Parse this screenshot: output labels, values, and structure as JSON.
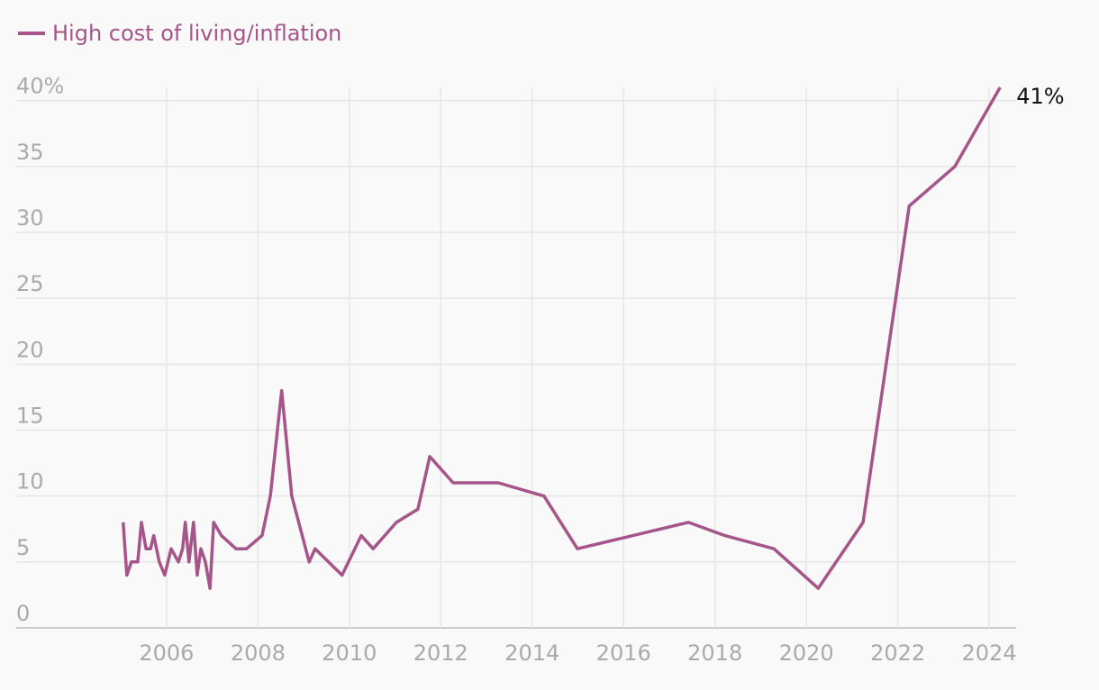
{
  "chart_data": {
    "type": "line",
    "series": [
      {
        "name": "High cost of living/inflation",
        "color": "#a6558a",
        "x": [
          2005.05,
          2005.13,
          2005.23,
          2005.37,
          2005.45,
          2005.55,
          2005.65,
          2005.72,
          2005.84,
          2005.96,
          2006.1,
          2006.26,
          2006.35,
          2006.41,
          2006.49,
          2006.59,
          2006.67,
          2006.75,
          2006.85,
          2006.95,
          2007.03,
          2007.2,
          2007.52,
          2007.75,
          2008.09,
          2008.27,
          2008.52,
          2008.74,
          2009.12,
          2009.25,
          2009.84,
          2010.26,
          2010.52,
          2011.03,
          2011.5,
          2011.76,
          2012.27,
          2013.26,
          2014.26,
          2014.99,
          2017.42,
          2018.22,
          2019.29,
          2020.26,
          2021.24,
          2022.25,
          2023.25,
          2024.24
        ],
        "values": [
          8,
          4,
          5,
          5,
          8,
          6,
          6,
          7,
          5,
          4,
          6,
          5,
          6,
          8,
          5,
          8,
          4,
          6,
          5,
          3,
          8,
          7,
          6,
          6,
          7,
          10,
          18,
          10,
          5,
          6,
          4,
          7,
          6,
          8,
          9,
          13,
          11,
          11,
          10,
          6,
          8,
          7,
          6,
          3,
          8,
          32,
          35,
          41
        ]
      }
    ],
    "end_label": "41%",
    "xlim": [
      2002.71,
      2024.59
    ],
    "xticks": [
      2006,
      2008,
      2010,
      2012,
      2014,
      2016,
      2018,
      2020,
      2022,
      2024
    ],
    "ylim": [
      0,
      41
    ],
    "yticks": [
      0,
      5,
      10,
      15,
      20,
      25,
      30,
      35,
      {
        "value": 40,
        "label": "40%"
      }
    ],
    "grid": true,
    "legend": "top-left"
  }
}
